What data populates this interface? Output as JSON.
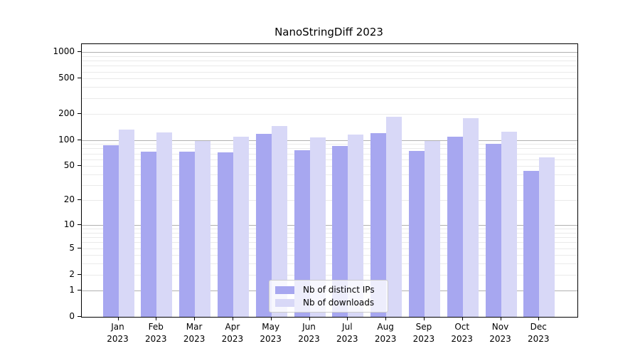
{
  "colors": {
    "distinct_ips": "#a7a7f0",
    "downloads": "#d8d8f7",
    "grid_major": "#b0b0b0",
    "grid_minor": "#eaeaea",
    "axis": "#000000",
    "legend_border": "#cccccc"
  },
  "chart_data": {
    "type": "bar",
    "title": "NanoStringDiff 2023",
    "y_scale": "log1p",
    "grid": true,
    "legend_position": "lower center",
    "categories": [
      "Jan",
      "Feb",
      "Mar",
      "Apr",
      "May",
      "Jun",
      "Jul",
      "Aug",
      "Sep",
      "Oct",
      "Nov",
      "Dec"
    ],
    "category_year": "2023",
    "series": [
      {
        "name": "Nb of distinct IPs",
        "color_key": "distinct_ips",
        "values": [
          87,
          74,
          74,
          72,
          117,
          76,
          86,
          119,
          75,
          110,
          90,
          44
        ]
      },
      {
        "name": "Nb of downloads",
        "color_key": "downloads",
        "values": [
          131,
          123,
          97,
          110,
          145,
          106,
          116,
          184,
          97,
          179,
          125,
          63
        ]
      }
    ],
    "y_tick_labels": [
      0,
      1,
      2,
      5,
      10,
      20,
      50,
      100,
      200,
      500,
      1000
    ],
    "y_major_grid": [
      1,
      10,
      100,
      1000
    ],
    "y_minor_grid": [
      2,
      3,
      4,
      5,
      6,
      7,
      8,
      9,
      20,
      30,
      40,
      50,
      60,
      70,
      80,
      90,
      200,
      300,
      400,
      500,
      600,
      700,
      800,
      900
    ],
    "ylim": [
      0,
      1230
    ]
  }
}
